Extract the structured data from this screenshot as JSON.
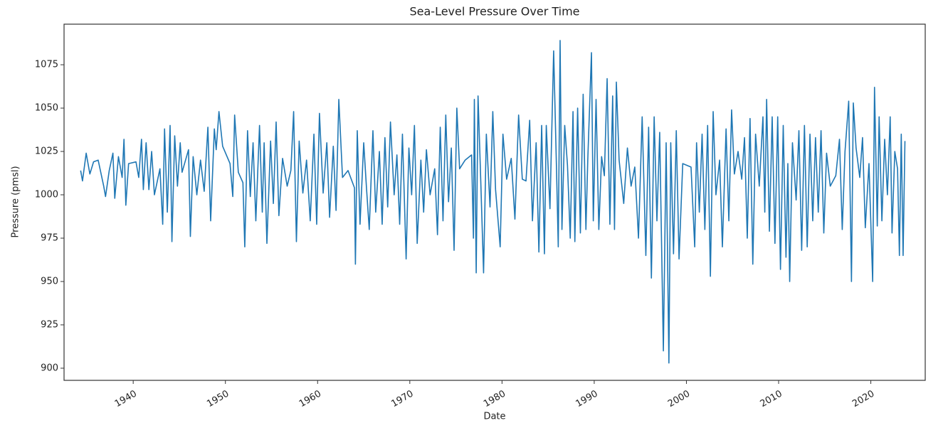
{
  "chart_data": {
    "type": "line",
    "title": "Sea-Level Pressure Over Time",
    "x_label": "Date",
    "y_label": "Pressure (pmsl)",
    "xlim": [
      1932.5,
      2025.9
    ],
    "xticks": [
      1940,
      1950,
      1960,
      1970,
      1980,
      1990,
      2000,
      2010,
      2020
    ],
    "ylim": [
      893,
      1098.4
    ],
    "yticks": [
      900,
      925,
      950,
      975,
      1000,
      1025,
      1050,
      1075
    ],
    "grid": false,
    "x": [
      1934.3,
      1934.5,
      1934.9,
      1935.3,
      1935.7,
      1936.2,
      1936.8,
      1937.0,
      1937.4,
      1937.8,
      1938.0,
      1938.4,
      1938.8,
      1939.0,
      1939.2,
      1939.5,
      1940.3,
      1940.6,
      1940.9,
      1941.1,
      1941.4,
      1941.7,
      1942.0,
      1942.3,
      1942.9,
      1943.2,
      1943.4,
      1943.7,
      1944.0,
      1944.2,
      1944.5,
      1944.8,
      1945.1,
      1945.3,
      1946.0,
      1946.2,
      1946.5,
      1946.9,
      1947.3,
      1947.7,
      1948.1,
      1948.4,
      1948.8,
      1949.0,
      1949.3,
      1949.7,
      1950.5,
      1950.8,
      1951.0,
      1951.4,
      1951.9,
      1952.1,
      1952.4,
      1952.7,
      1953.0,
      1953.3,
      1953.7,
      1954.0,
      1954.2,
      1954.5,
      1954.9,
      1955.2,
      1955.5,
      1955.8,
      1956.2,
      1956.7,
      1957.1,
      1957.4,
      1957.7,
      1958.0,
      1958.4,
      1958.8,
      1959.2,
      1959.6,
      1959.9,
      1960.2,
      1960.6,
      1961.0,
      1961.3,
      1961.7,
      1962.0,
      1962.3,
      1962.7,
      1963.3,
      1964.0,
      1964.1,
      1964.3,
      1964.6,
      1965.0,
      1965.3,
      1965.6,
      1966.0,
      1966.3,
      1966.7,
      1967.0,
      1967.3,
      1967.6,
      1967.9,
      1968.3,
      1968.6,
      1968.9,
      1969.2,
      1969.6,
      1969.9,
      1970.2,
      1970.5,
      1970.8,
      1971.2,
      1971.5,
      1971.8,
      1972.2,
      1972.7,
      1973.0,
      1973.3,
      1973.6,
      1973.9,
      1974.2,
      1974.5,
      1974.8,
      1975.1,
      1975.4,
      1976.0,
      1976.7,
      1976.9,
      1977.0,
      1977.2,
      1977.4,
      1977.7,
      1978.0,
      1978.3,
      1978.7,
      1979.0,
      1979.3,
      1979.8,
      1980.1,
      1980.5,
      1981.0,
      1981.4,
      1981.8,
      1982.2,
      1982.6,
      1983.0,
      1983.3,
      1983.7,
      1984.0,
      1984.3,
      1984.6,
      1984.8,
      1985.2,
      1985.6,
      1985.9,
      1986.1,
      1986.3,
      1986.5,
      1986.8,
      1987.1,
      1987.4,
      1987.7,
      1987.9,
      1988.2,
      1988.5,
      1988.8,
      1989.1,
      1989.3,
      1989.7,
      1989.9,
      1990.2,
      1990.5,
      1990.8,
      1991.1,
      1991.4,
      1991.7,
      1992.0,
      1992.2,
      1992.4,
      1992.7,
      1993.2,
      1993.6,
      1994.0,
      1994.4,
      1994.8,
      1995.2,
      1995.6,
      1995.9,
      1996.2,
      1996.5,
      1996.8,
      1997.1,
      1997.5,
      1997.8,
      1998.1,
      1998.3,
      1998.6,
      1998.9,
      1999.2,
      1999.6,
      2000.5,
      2000.9,
      2001.1,
      2001.4,
      2001.7,
      2002.0,
      2002.3,
      2002.6,
      2002.9,
      2003.2,
      2003.6,
      2003.9,
      2004.3,
      2004.6,
      2004.9,
      2005.2,
      2005.6,
      2006.0,
      2006.3,
      2006.6,
      2006.9,
      2007.2,
      2007.5,
      2007.9,
      2008.3,
      2008.5,
      2008.7,
      2009.0,
      2009.3,
      2009.6,
      2009.9,
      2010.2,
      2010.5,
      2010.8,
      2011.0,
      2011.2,
      2011.5,
      2011.9,
      2012.2,
      2012.5,
      2012.8,
      2013.1,
      2013.4,
      2013.7,
      2014.0,
      2014.3,
      2014.6,
      2014.9,
      2015.2,
      2015.6,
      2016.2,
      2016.6,
      2016.9,
      2017.2,
      2017.6,
      2017.9,
      2018.1,
      2018.4,
      2018.8,
      2019.1,
      2019.4,
      2019.8,
      2020.2,
      2020.4,
      2020.7,
      2020.9,
      2021.2,
      2021.5,
      2021.8,
      2022.1,
      2022.3,
      2022.6,
      2022.9,
      2023.1,
      2023.3,
      2023.5,
      2023.7
    ],
    "series": [
      {
        "name": "Pressure",
        "color": "#1f77b4",
        "values": [
          1014,
          1008,
          1024,
          1012,
          1019,
          1020,
          1005,
          999,
          1014,
          1024,
          998,
          1022,
          1010,
          1032,
          994,
          1018,
          1019,
          1010,
          1032,
          1003,
          1030,
          1003,
          1025,
          1000,
          1015,
          983,
          1038,
          990,
          1040,
          973,
          1034,
          1005,
          1030,
          1013,
          1026,
          976,
          1022,
          1000,
          1020,
          1002,
          1039,
          985,
          1038,
          1026,
          1048,
          1028,
          1018,
          999,
          1046,
          1013,
          1007,
          970,
          1037,
          999,
          1030,
          985,
          1040,
          990,
          1030,
          972,
          1031,
          995,
          1042,
          988,
          1021,
          1005,
          1014,
          1048,
          973,
          1031,
          1001,
          1020,
          985,
          1035,
          983,
          1047,
          1001,
          1030,
          987,
          1028,
          991,
          1055,
          1010,
          1014,
          1004,
          960,
          1037,
          983,
          1030,
          1004,
          980,
          1037,
          990,
          1025,
          983,
          1033,
          993,
          1042,
          1000,
          1023,
          983,
          1035,
          963,
          1027,
          1000,
          1040,
          972,
          1020,
          990,
          1026,
          1000,
          1015,
          977,
          1039,
          985,
          1046,
          996,
          1027,
          968,
          1050,
          1015,
          1020,
          1023,
          975,
          1055,
          955,
          1057,
          1007,
          955,
          1035,
          993,
          1048,
          1003,
          970,
          1035,
          1009,
          1021,
          986,
          1046,
          1009,
          1008,
          1043,
          985,
          1030,
          967,
          1040,
          966,
          1040,
          992,
          1083,
          1017,
          970,
          1089,
          980,
          1040,
          1017,
          975,
          1048,
          973,
          1050,
          978,
          1058,
          980,
          1020,
          1082,
          985,
          1055,
          980,
          1022,
          1011,
          1067,
          983,
          1057,
          980,
          1065,
          1020,
          995,
          1027,
          1005,
          1016,
          975,
          1045,
          965,
          1039,
          952,
          1045,
          985,
          1036,
          910,
          1030,
          903,
          1030,
          966,
          1037,
          963,
          1018,
          1016,
          970,
          1030,
          990,
          1035,
          980,
          1040,
          953,
          1048,
          1000,
          1020,
          970,
          1038,
          985,
          1049,
          1012,
          1025,
          1009,
          1033,
          975,
          1044,
          960,
          1035,
          1005,
          1045,
          990,
          1055,
          979,
          1045,
          972,
          1045,
          957,
          1040,
          964,
          1018,
          950,
          1030,
          997,
          1037,
          968,
          1040,
          970,
          1035,
          985,
          1033,
          990,
          1037,
          978,
          1024,
          1005,
          1011,
          1032,
          980,
          1025,
          1054,
          950,
          1053,
          1027,
          1010,
          1033,
          981,
          1018,
          950,
          1062,
          982,
          1045,
          985,
          1032,
          1000,
          1045,
          978,
          1025,
          1015,
          965,
          1035,
          965,
          1031
        ]
      }
    ]
  }
}
